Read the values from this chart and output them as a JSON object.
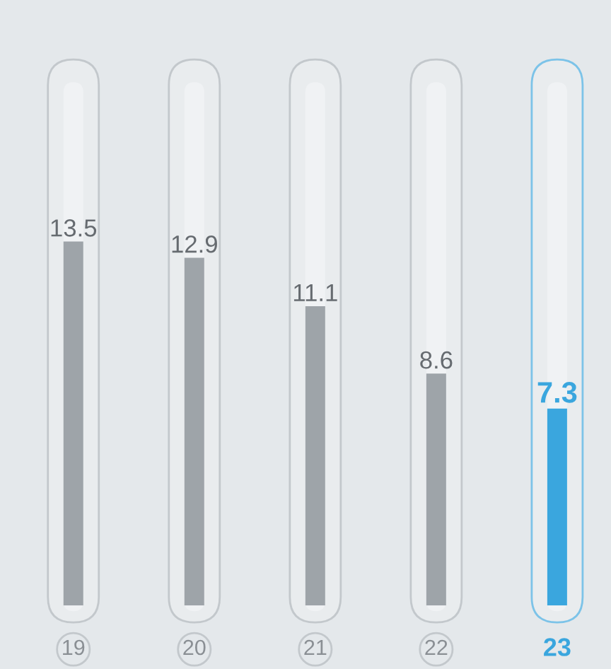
{
  "chart_data": {
    "type": "bar",
    "categories": [
      "19",
      "20",
      "21",
      "22",
      "23"
    ],
    "values": [
      13.5,
      12.9,
      11.1,
      8.6,
      7.3
    ],
    "colors": [
      "#9ea4a9",
      "#9ea4a9",
      "#9ea4a9",
      "#9ea4a9",
      "#3aa6de"
    ],
    "data_labels": true
  }
}
